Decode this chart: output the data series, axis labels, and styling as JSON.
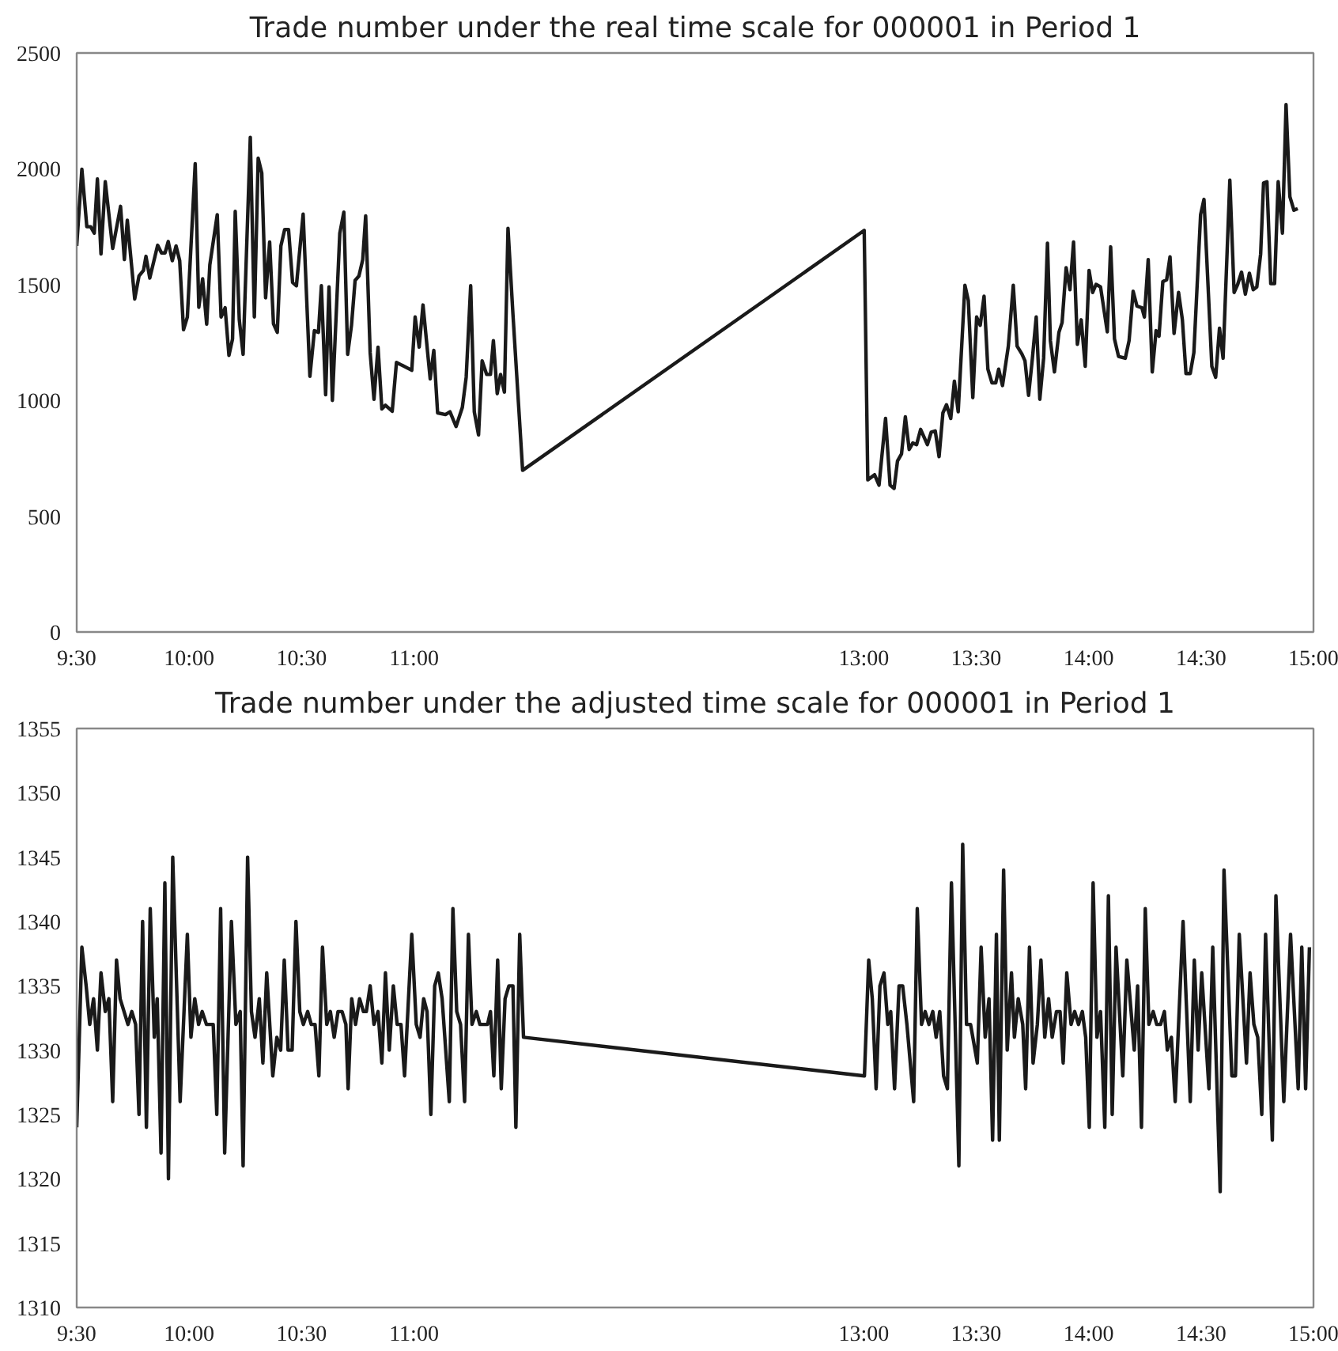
{
  "chart_data": [
    {
      "type": "line",
      "title": "Trade number under the real time scale for 000001 in Period 1",
      "xlim": [
        9.5,
        15
      ],
      "xticks": [
        {
          "value": 9.5,
          "label": "9:30"
        },
        {
          "value": 10,
          "label": "10:00"
        },
        {
          "value": 10.5,
          "label": "10:30"
        },
        {
          "value": 11,
          "label": "11:00"
        },
        {
          "value": 13,
          "label": "13:00"
        },
        {
          "value": 13.5,
          "label": "13:30"
        },
        {
          "value": 14,
          "label": "14:00"
        },
        {
          "value": 14.5,
          "label": "14:30"
        },
        {
          "value": 15,
          "label": "15:00"
        }
      ],
      "ylim": [
        0,
        2500
      ],
      "yticks": [
        0,
        500,
        1000,
        1500,
        2000,
        2500
      ],
      "grid": false,
      "marker": "none",
      "line_style": "solid",
      "series": [
        {
          "color": "#1a1a1a",
          "x": [
            9.5,
            9.523,
            9.545,
            9.562,
            9.578,
            9.592,
            9.608,
            9.627,
            9.66,
            9.695,
            9.712,
            9.725,
            9.758,
            9.777,
            9.797,
            9.808,
            9.825,
            9.86,
            9.877,
            9.893,
            9.907,
            9.925,
            9.942,
            9.958,
            9.975,
            9.992,
            10.027,
            10.043,
            10.06,
            10.078,
            10.092,
            10.125,
            10.142,
            10.16,
            10.177,
            10.193,
            10.205,
            10.223,
            10.24,
            10.272,
            10.29,
            10.307,
            10.323,
            10.34,
            10.358,
            10.375,
            10.392,
            10.408,
            10.425,
            10.442,
            10.46,
            10.477,
            10.507,
            10.537,
            10.557,
            10.575,
            10.588,
            10.607,
            10.622,
            10.637,
            10.67,
            10.688,
            10.705,
            10.722,
            10.738,
            10.755,
            10.772,
            10.785,
            10.805,
            10.822,
            10.84,
            10.857,
            10.873,
            10.903,
            10.922,
            10.99,
            11.005,
            11.023,
            11.04,
            11.072,
            11.088,
            11.105,
            11.14,
            11.16,
            11.187,
            11.215,
            11.232,
            11.252,
            11.268,
            11.287,
            11.303,
            11.323,
            11.34,
            11.353,
            11.37,
            11.385,
            11.402,
            11.418,
            11.44,
            11.483,
            13.002,
            13.018,
            13.048,
            13.068,
            13.097,
            13.117,
            13.135,
            13.15,
            13.168,
            13.185,
            13.202,
            13.218,
            13.235,
            13.253,
            13.283,
            13.3,
            13.318,
            13.335,
            13.352,
            13.368,
            13.387,
            13.403,
            13.42,
            13.45,
            13.465,
            13.485,
            13.502,
            13.518,
            13.535,
            13.552,
            13.57,
            13.587,
            13.6,
            13.617,
            13.643,
            13.665,
            13.682,
            13.703,
            13.717,
            13.733,
            13.75,
            13.767,
            13.783,
            13.8,
            13.817,
            13.83,
            13.848,
            13.868,
            13.882,
            13.9,
            13.917,
            13.933,
            13.95,
            13.967,
            13.985,
            14.002,
            14.018,
            14.033,
            14.053,
            14.083,
            14.098,
            14.115,
            14.133,
            14.163,
            14.18,
            14.198,
            14.215,
            14.237,
            14.248,
            14.265,
            14.283,
            14.3,
            14.313,
            14.33,
            14.347,
            14.362,
            14.38,
            14.4,
            14.417,
            14.433,
            14.452,
            14.468,
            14.498,
            14.513,
            14.548,
            14.565,
            14.582,
            14.598,
            14.628,
            14.647,
            14.663,
            14.68,
            14.697,
            14.715,
            14.732,
            14.748,
            14.765,
            14.778,
            14.793,
            14.81,
            14.827,
            14.843,
            14.862,
            14.878,
            14.895,
            14.913,
            14.93
          ],
          "values": [
            1667,
            1998,
            1750,
            1750,
            1722,
            1956,
            1632,
            1944,
            1656,
            1838,
            1608,
            1778,
            1438,
            1537,
            1561,
            1622,
            1528,
            1670,
            1637,
            1637,
            1686,
            1603,
            1667,
            1603,
            1305,
            1360,
            2022,
            1402,
            1525,
            1329,
            1585,
            1802,
            1360,
            1400,
            1194,
            1265,
            1816,
            1348,
            1199,
            2136,
            1360,
            2046,
            1982,
            1443,
            1684,
            1331,
            1294,
            1667,
            1738,
            1738,
            1509,
            1495,
            1804,
            1104,
            1301,
            1294,
            1495,
            1024,
            1490,
            1000,
            1722,
            1813,
            1199,
            1324,
            1518,
            1537,
            1608,
            1797,
            1206,
            1005,
            1230,
            963,
            979,
            953,
            1164,
            1130,
            1360,
            1230,
            1412,
            1093,
            1216,
            946,
            939,
            951,
            887,
            970,
            1100,
            1495,
            951,
            851,
            1171,
            1112,
            1112,
            1258,
            1029,
            1112,
            1036,
            1743,
            1372,
            698,
            1734,
            657,
            679,
            634,
            922,
            634,
            620,
            738,
            769,
            929,
            788,
            816,
            809,
            875,
            809,
            863,
            868,
            757,
            946,
            981,
            922,
            1083,
            951,
            1497,
            1431,
            1012,
            1360,
            1324,
            1450,
            1135,
            1076,
            1076,
            1135,
            1064,
            1234,
            1497,
            1234,
            1201,
            1171,
            1022,
            1182,
            1360,
            1005,
            1182,
            1679,
            1258,
            1123,
            1294,
            1336,
            1573,
            1478,
            1684,
            1242,
            1348,
            1147,
            1561,
            1466,
            1501,
            1490,
            1296,
            1663,
            1265,
            1190,
            1182,
            1258,
            1471,
            1407,
            1400,
            1360,
            1608,
            1123,
            1301,
            1277,
            1513,
            1521,
            1620,
            1289,
            1466,
            1348,
            1116,
            1116,
            1206,
            1802,
            1868,
            1147,
            1100,
            1312,
            1182,
            1951,
            1466,
            1501,
            1554,
            1459,
            1549,
            1478,
            1490,
            1632,
            1939,
            1944,
            1504,
            1504,
            1944,
            1722,
            2277,
            1880,
            1821,
            1828
          ]
        }
      ]
    },
    {
      "type": "line",
      "title": "Trade number under the adjusted time scale for 000001 in Period 1",
      "xlim": [
        9.5,
        15
      ],
      "xticks": [
        {
          "value": 9.5,
          "label": "9:30"
        },
        {
          "value": 10,
          "label": "10:00"
        },
        {
          "value": 10.5,
          "label": "10:30"
        },
        {
          "value": 11,
          "label": "11:00"
        },
        {
          "value": 13,
          "label": "13:00"
        },
        {
          "value": 13.5,
          "label": "13:30"
        },
        {
          "value": 14,
          "label": "14:00"
        },
        {
          "value": 14.5,
          "label": "14:30"
        },
        {
          "value": 15,
          "label": "15:00"
        }
      ],
      "ylim": [
        1310,
        1355
      ],
      "yticks": [
        1310,
        1315,
        1320,
        1325,
        1330,
        1335,
        1340,
        1345,
        1350,
        1355
      ],
      "grid": false,
      "marker": "none",
      "line_style": "solid",
      "series": [
        {
          "color": "#1a1a1a",
          "x": [
            9.5,
            9.523,
            9.542,
            9.558,
            9.575,
            9.592,
            9.608,
            9.627,
            9.643,
            9.66,
            9.677,
            9.693,
            9.728,
            9.745,
            9.762,
            9.777,
            9.793,
            9.81,
            9.827,
            9.845,
            9.858,
            9.875,
            9.892,
            9.908,
            9.927,
            9.96,
            9.992,
            10.008,
            10.025,
            10.042,
            10.058,
            10.077,
            10.107,
            10.123,
            10.14,
            10.158,
            10.188,
            10.208,
            10.227,
            10.24,
            10.26,
            10.277,
            10.293,
            10.312,
            10.328,
            10.345,
            10.372,
            10.39,
            10.407,
            10.423,
            10.44,
            10.458,
            10.475,
            10.492,
            10.508,
            10.527,
            10.543,
            10.56,
            10.577,
            10.593,
            10.612,
            10.628,
            10.645,
            10.662,
            10.68,
            10.697,
            10.707,
            10.723,
            10.74,
            10.758,
            10.775,
            10.788,
            10.805,
            10.822,
            10.84,
            10.857,
            10.873,
            10.89,
            10.908,
            10.925,
            10.942,
            10.958,
            10.99,
            11.01,
            11.027,
            11.043,
            11.058,
            11.075,
            11.092,
            11.108,
            11.125,
            11.157,
            11.173,
            11.19,
            11.207,
            11.225,
            11.242,
            11.258,
            11.277,
            11.293,
            11.327,
            11.34,
            11.355,
            11.372,
            11.388,
            11.405,
            11.422,
            11.44,
            11.453,
            11.47,
            11.487,
            13.003,
            13.022,
            13.038,
            13.055,
            13.072,
            13.09,
            13.107,
            13.12,
            13.137,
            13.157,
            13.173,
            13.192,
            13.222,
            13.238,
            13.257,
            13.273,
            13.29,
            13.307,
            13.322,
            13.338,
            13.355,
            13.372,
            13.39,
            13.423,
            13.44,
            13.457,
            13.475,
            13.505,
            13.522,
            13.54,
            13.557,
            13.573,
            13.59,
            13.603,
            13.622,
            13.638,
            13.657,
            13.67,
            13.687,
            13.707,
            13.72,
            13.737,
            13.753,
            13.772,
            13.788,
            13.805,
            13.822,
            13.838,
            13.857,
            13.873,
            13.887,
            13.903,
            13.922,
            13.938,
            13.955,
            13.972,
            13.987,
            14.003,
            14.02,
            14.037,
            14.053,
            14.072,
            14.088,
            14.105,
            14.122,
            14.152,
            14.17,
            14.203,
            14.218,
            14.235,
            14.252,
            14.268,
            14.287,
            14.303,
            14.32,
            14.337,
            14.35,
            14.368,
            14.385,
            14.42,
            14.452,
            14.47,
            14.487,
            14.503,
            14.535,
            14.552,
            14.585,
            14.602,
            14.637,
            14.653,
            14.67,
            14.702,
            14.718,
            14.735,
            14.752,
            14.77,
            14.787,
            14.817,
            14.833,
            14.868,
            14.898,
            14.932,
            14.948,
            14.965,
            14.982
          ],
          "values": [
            1324,
            1338,
            1335,
            1332,
            1334,
            1330,
            1336,
            1333,
            1334,
            1326,
            1337,
            1334,
            1332,
            1333,
            1332,
            1325,
            1340,
            1324,
            1341,
            1331,
            1334,
            1322,
            1343,
            1320,
            1345,
            1326,
            1339,
            1331,
            1334,
            1332,
            1333,
            1332,
            1332,
            1325,
            1341,
            1322,
            1340,
            1332,
            1333,
            1321,
            1345,
            1333,
            1331,
            1334,
            1329,
            1336,
            1328,
            1331,
            1330,
            1337,
            1330,
            1330,
            1340,
            1333,
            1332,
            1333,
            1332,
            1332,
            1328,
            1338,
            1332,
            1333,
            1331,
            1333,
            1333,
            1332,
            1327,
            1334,
            1332,
            1334,
            1333,
            1333,
            1335,
            1332,
            1333,
            1329,
            1336,
            1330,
            1335,
            1332,
            1332,
            1328,
            1339,
            1332,
            1331,
            1334,
            1333,
            1325,
            1335,
            1336,
            1334,
            1326,
            1341,
            1333,
            1332,
            1326,
            1339,
            1332,
            1333,
            1332,
            1332,
            1333,
            1328,
            1337,
            1327,
            1334,
            1335,
            1335,
            1324,
            1339,
            1331,
            1328,
            1337,
            1334,
            1327,
            1335,
            1336,
            1332,
            1333,
            1327,
            1335,
            1335,
            1332,
            1326,
            1341,
            1332,
            1333,
            1332,
            1333,
            1331,
            1333,
            1328,
            1327,
            1343,
            1321,
            1346,
            1332,
            1332,
            1329,
            1338,
            1331,
            1334,
            1323,
            1339,
            1323,
            1344,
            1330,
            1336,
            1331,
            1334,
            1332,
            1327,
            1338,
            1329,
            1332,
            1337,
            1331,
            1334,
            1331,
            1333,
            1333,
            1329,
            1336,
            1332,
            1333,
            1332,
            1333,
            1331,
            1324,
            1343,
            1331,
            1333,
            1324,
            1342,
            1325,
            1338,
            1328,
            1337,
            1330,
            1335,
            1324,
            1341,
            1332,
            1333,
            1332,
            1332,
            1333,
            1330,
            1331,
            1326,
            1340,
            1326,
            1337,
            1330,
            1336,
            1327,
            1338,
            1319,
            1344,
            1328,
            1328,
            1339,
            1329,
            1336,
            1332,
            1331,
            1325,
            1339,
            1323,
            1342,
            1326,
            1339,
            1327,
            1338,
            1327,
            1338
          ]
        }
      ]
    }
  ]
}
